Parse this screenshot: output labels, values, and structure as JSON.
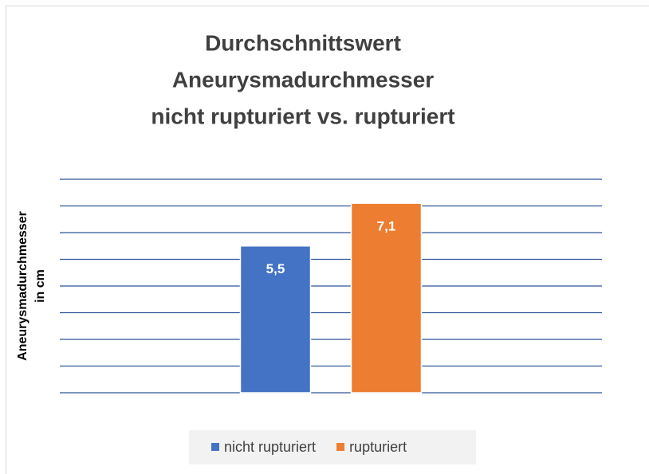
{
  "chart_data": {
    "type": "bar",
    "title": [
      "Durchschnittswert",
      "Aneurysmadurchmesser",
      "nicht rupturiert vs. rupturiert"
    ],
    "ylabel": [
      "Aneurysmadurchmesser",
      "in cm"
    ],
    "categories": [
      null
    ],
    "series": [
      {
        "name": "nicht rupturiert",
        "color": "#4472c4",
        "values": [
          5.5
        ],
        "value_labels": [
          "5,5"
        ]
      },
      {
        "name": "rupturiert",
        "color": "#ed7d31",
        "values": [
          7.1
        ],
        "value_labels": [
          "7,1"
        ]
      }
    ],
    "ylim": [
      0,
      8
    ],
    "yticks": [
      0,
      1,
      2,
      3,
      4,
      5,
      6,
      7,
      8
    ],
    "grid": true,
    "legend": "bottom"
  }
}
